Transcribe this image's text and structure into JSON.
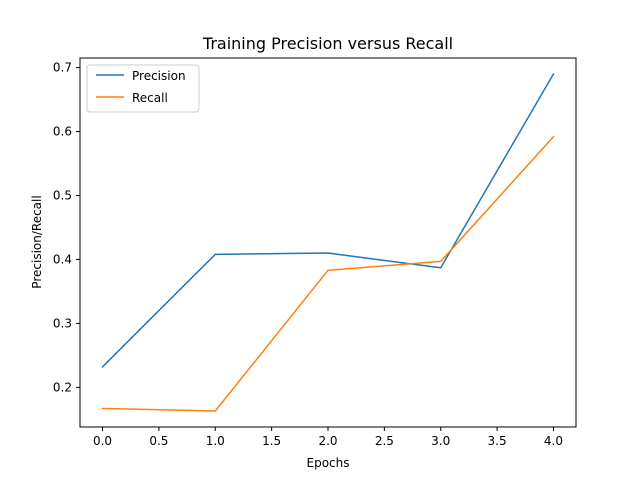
{
  "chart_data": {
    "type": "line",
    "title": "Training Precision versus Recall",
    "xlabel": "Epochs",
    "ylabel": "Precision/Recall",
    "x": [
      0,
      1,
      2,
      3,
      4
    ],
    "xlim": [
      -0.2,
      4.2
    ],
    "ylim": [
      0.138,
      0.715
    ],
    "xticks": [
      0.0,
      0.5,
      1.0,
      1.5,
      2.0,
      2.5,
      3.0,
      3.5,
      4.0
    ],
    "xtick_labels": [
      "0.0",
      "0.5",
      "1.0",
      "1.5",
      "2.0",
      "2.5",
      "3.0",
      "3.5",
      "4.0"
    ],
    "yticks": [
      0.2,
      0.3,
      0.4,
      0.5,
      0.6,
      0.7
    ],
    "ytick_labels": [
      "0.2",
      "0.3",
      "0.4",
      "0.5",
      "0.6",
      "0.7"
    ],
    "grid": false,
    "legend_position": "top-left",
    "series": [
      {
        "name": "Precision",
        "color": "#1f77b4",
        "values": [
          0.232,
          0.408,
          0.41,
          0.387,
          0.69
        ]
      },
      {
        "name": "Recall",
        "color": "#ff7f0e",
        "values": [
          0.167,
          0.163,
          0.383,
          0.397,
          0.592
        ]
      }
    ]
  }
}
